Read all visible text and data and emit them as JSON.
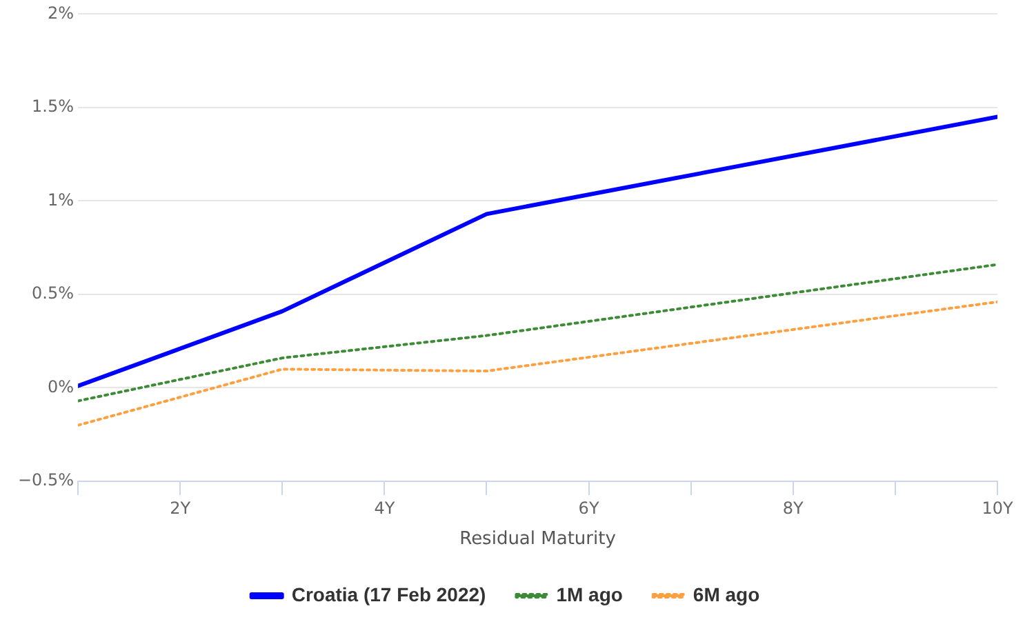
{
  "chart_data": {
    "type": "line",
    "xlabel": "Residual Maturity",
    "x": [
      1,
      3,
      5,
      10
    ],
    "series": [
      {
        "name": "Croatia (17 Feb 2022)",
        "color": "#0000ff",
        "line_style": "solid",
        "values": [
          0.01,
          0.41,
          0.93,
          1.45
        ]
      },
      {
        "name": "1M ago",
        "color": "#3d8b37",
        "line_style": "dotted",
        "values": [
          -0.07,
          0.16,
          0.28,
          0.66
        ]
      },
      {
        "name": "6M ago",
        "color": "#ffa040",
        "line_style": "dotted",
        "values": [
          -0.2,
          0.1,
          0.09,
          0.46
        ]
      }
    ],
    "xlim": [
      1,
      10
    ],
    "xticks": [
      {
        "value": 1,
        "label": null
      },
      {
        "value": 2,
        "label": "2Y"
      },
      {
        "value": 3,
        "label": null
      },
      {
        "value": 4,
        "label": "4Y"
      },
      {
        "value": 5,
        "label": null
      },
      {
        "value": 6,
        "label": "6Y"
      },
      {
        "value": 7,
        "label": null
      },
      {
        "value": 8,
        "label": "8Y"
      },
      {
        "value": 9,
        "label": null
      },
      {
        "value": 10,
        "label": "10Y"
      }
    ],
    "ylim": [
      -0.5,
      2
    ],
    "yticks": [
      {
        "value": -0.5,
        "label": "−0.5%"
      },
      {
        "value": 0,
        "label": "0%"
      },
      {
        "value": 0.5,
        "label": "0.5%"
      },
      {
        "value": 1,
        "label": "1%"
      },
      {
        "value": 1.5,
        "label": "1.5%"
      },
      {
        "value": 2,
        "label": "2%"
      }
    ],
    "grid": "y",
    "legend": "bottom",
    "marker": "none"
  }
}
